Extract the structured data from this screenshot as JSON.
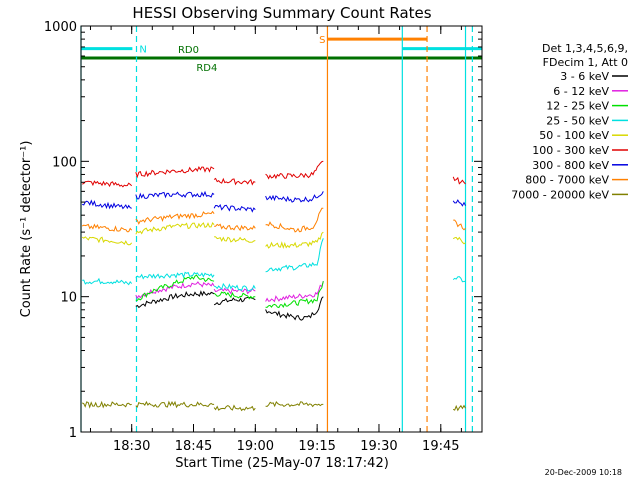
{
  "chart_data": {
    "type": "line",
    "title": "HESSI Observing Summary Count Rates",
    "xlabel": "Start Time (25-May-07 18:17:42)",
    "ylabel": "Count Rate (s⁻¹ detector⁻¹)",
    "xlim": [
      "18:17:42",
      "19:55:00"
    ],
    "ylim": [
      1,
      1000
    ],
    "yscale": "log",
    "x_ticks": [
      "18:30",
      "18:45",
      "19:00",
      "19:15",
      "19:30",
      "19:45"
    ],
    "y_ticks": [
      "1",
      "10",
      "100",
      "1000"
    ],
    "legend": {
      "position": "right",
      "header": [
        "Det 1,3,4,5,6,9,",
        "FDecim 1, Att 0"
      ],
      "entries": [
        {
          "label": "3 - 6 keV",
          "color": "#000000"
        },
        {
          "label": "6 - 12 keV",
          "color": "#e020e0"
        },
        {
          "label": "12 - 25 keV",
          "color": "#00e000"
        },
        {
          "label": "25 - 50 keV",
          "color": "#00e0e0"
        },
        {
          "label": "50 - 100 keV",
          "color": "#d8d800"
        },
        {
          "label": "100 - 300 keV",
          "color": "#e00000"
        },
        {
          "label": "300 - 800 keV",
          "color": "#0000e0"
        },
        {
          "label": "800 - 7000 keV",
          "color": "#ff8000"
        },
        {
          "label": "7000 - 20000 keV",
          "color": "#808000"
        }
      ]
    },
    "series": [
      {
        "name": "3 - 6 keV",
        "color": "#000000",
        "segments": [
          [
            [
              "18:31:00",
              8.5
            ],
            [
              "18:34:00",
              9
            ],
            [
              "18:40:00",
              10
            ],
            [
              "18:45:00",
              10.5
            ],
            [
              "18:50:00",
              10.5
            ]
          ],
          [
            [
              "18:50:00",
              9
            ],
            [
              "18:55:00",
              9.5
            ],
            [
              "19:00:00",
              9.5
            ]
          ],
          [
            [
              "19:02:30",
              8
            ],
            [
              "19:05:00",
              7.5
            ],
            [
              "19:10:00",
              7
            ],
            [
              "19:13:00",
              7
            ],
            [
              "19:15:00",
              8
            ],
            [
              "19:16:30",
              10
            ]
          ]
        ]
      },
      {
        "name": "6 - 12 keV",
        "color": "#e020e0",
        "segments": [
          [
            [
              "18:31:00",
              10
            ],
            [
              "18:35:00",
              11
            ],
            [
              "18:45:00",
              12.5
            ],
            [
              "18:50:00",
              12
            ]
          ],
          [
            [
              "18:50:00",
              11
            ],
            [
              "19:00:00",
              11
            ]
          ],
          [
            [
              "19:02:30",
              9.5
            ],
            [
              "19:10:00",
              10
            ],
            [
              "19:15:00",
              10.5
            ],
            [
              "19:16:30",
              13
            ]
          ]
        ]
      },
      {
        "name": "12 - 25 keV",
        "color": "#00e000",
        "segments": [
          [
            [
              "18:31:00",
              9.5
            ],
            [
              "18:35:00",
              11
            ],
            [
              "18:45:00",
              14
            ],
            [
              "18:50:00",
              13
            ]
          ],
          [
            [
              "18:50:00",
              10.5
            ],
            [
              "19:00:00",
              10
            ]
          ],
          [
            [
              "19:02:30",
              8.5
            ],
            [
              "19:10:00",
              9
            ],
            [
              "19:15:00",
              9.5
            ],
            [
              "19:16:30",
              13
            ]
          ]
        ]
      },
      {
        "name": "25 - 50 keV",
        "color": "#00e0e0",
        "segments": [
          [
            [
              "18:18:00",
              13
            ],
            [
              "18:25:00",
              13
            ],
            [
              "18:30:00",
              12.5
            ]
          ],
          [
            [
              "18:31:00",
              14
            ],
            [
              "18:40:00",
              14.5
            ],
            [
              "18:50:00",
              14.5
            ]
          ],
          [
            [
              "18:50:00",
              12
            ],
            [
              "19:00:00",
              11.5
            ]
          ],
          [
            [
              "19:02:30",
              16
            ],
            [
              "19:10:00",
              16.5
            ],
            [
              "19:15:00",
              17.5
            ],
            [
              "19:16:30",
              27
            ]
          ],
          [
            [
              "19:48:00",
              14
            ],
            [
              "19:51:00",
              13
            ]
          ]
        ]
      },
      {
        "name": "50 - 100 keV",
        "color": "#d8d800",
        "segments": [
          [
            [
              "18:18:00",
              27
            ],
            [
              "18:25:00",
              26
            ],
            [
              "18:30:00",
              25
            ]
          ],
          [
            [
              "18:31:00",
              30
            ],
            [
              "18:40:00",
              33
            ],
            [
              "18:50:00",
              34
            ]
          ],
          [
            [
              "18:50:00",
              27
            ],
            [
              "19:00:00",
              26
            ]
          ],
          [
            [
              "19:02:30",
              24
            ],
            [
              "19:10:00",
              24
            ],
            [
              "19:15:00",
              25
            ],
            [
              "19:16:30",
              30
            ]
          ],
          [
            [
              "19:48:00",
              28
            ],
            [
              "19:51:00",
              25
            ]
          ]
        ]
      },
      {
        "name": "100 - 300 keV",
        "color": "#e00000",
        "segments": [
          [
            [
              "18:18:00",
              70
            ],
            [
              "18:25:00",
              68
            ],
            [
              "18:30:00",
              66
            ]
          ],
          [
            [
              "18:31:00",
              80
            ],
            [
              "18:40:00",
              85
            ],
            [
              "18:50:00",
              88
            ]
          ],
          [
            [
              "18:50:00",
              72
            ],
            [
              "19:00:00",
              70
            ]
          ],
          [
            [
              "19:02:30",
              78
            ],
            [
              "19:10:00",
              78
            ],
            [
              "19:14:00",
              80
            ],
            [
              "19:16:30",
              100
            ]
          ],
          [
            [
              "19:48:00",
              75
            ],
            [
              "19:51:00",
              68
            ]
          ]
        ]
      },
      {
        "name": "300 - 800 keV",
        "color": "#0000e0",
        "segments": [
          [
            [
              "18:18:00",
              50
            ],
            [
              "18:25:00",
              47
            ],
            [
              "18:30:00",
              45
            ]
          ],
          [
            [
              "18:31:00",
              55
            ],
            [
              "18:40:00",
              57
            ],
            [
              "18:50:00",
              57
            ]
          ],
          [
            [
              "18:50:00",
              46
            ],
            [
              "19:00:00",
              44
            ]
          ],
          [
            [
              "19:02:30",
              54
            ],
            [
              "19:10:00",
              52
            ],
            [
              "19:14:00",
              53
            ],
            [
              "19:16:30",
              60
            ]
          ],
          [
            [
              "19:48:00",
              52
            ],
            [
              "19:51:00",
              47
            ]
          ]
        ]
      },
      {
        "name": "800 - 7000 keV",
        "color": "#ff8000",
        "segments": [
          [
            [
              "18:18:00",
              33
            ],
            [
              "18:25:00",
              32
            ],
            [
              "18:30:00",
              31
            ]
          ],
          [
            [
              "18:31:00",
              36
            ],
            [
              "18:40:00",
              39
            ],
            [
              "18:50:00",
              41
            ]
          ],
          [
            [
              "18:50:00",
              33
            ],
            [
              "19:00:00",
              32
            ]
          ],
          [
            [
              "19:02:30",
              35
            ],
            [
              "19:10:00",
              31
            ],
            [
              "19:14:00",
              33
            ],
            [
              "19:16:30",
              45
            ]
          ],
          [
            [
              "19:48:00",
              36
            ],
            [
              "19:51:00",
              32
            ]
          ]
        ]
      },
      {
        "name": "7000 - 20000 keV",
        "color": "#808000",
        "segments": [
          [
            [
              "18:18:00",
              1.6
            ],
            [
              "18:30:00",
              1.6
            ]
          ],
          [
            [
              "18:31:00",
              1.6
            ],
            [
              "18:50:00",
              1.6
            ]
          ],
          [
            [
              "18:50:00",
              1.5
            ],
            [
              "19:00:00",
              1.5
            ]
          ],
          [
            [
              "19:02:30",
              1.6
            ],
            [
              "19:16:30",
              1.6
            ]
          ],
          [
            [
              "19:48:00",
              1.5
            ],
            [
              "19:51:00",
              1.5
            ]
          ]
        ]
      }
    ],
    "annotations": [
      {
        "label": "N",
        "color": "#00e0e0",
        "start": "18:17:42",
        "end": "18:30:10",
        "value": 680
      },
      {
        "label": "RD0",
        "color": "#007000",
        "start": "18:49:00",
        "end": "19:55:00",
        "value": 580
      },
      {
        "label": "RD4",
        "color": "#007000",
        "start": "18:17:42",
        "end": "18:52:00",
        "value": 580
      },
      {
        "label": "S",
        "color": "#ff8000",
        "start": "19:17:30",
        "end": "19:41:40",
        "value": 800
      },
      {
        "label": "",
        "color": "#00e0e0",
        "start": "19:35:40",
        "end": "19:55:00",
        "value": 680
      }
    ],
    "vlines": [
      {
        "time": "18:17:42",
        "color": "#00e0e0",
        "style": "solid"
      },
      {
        "time": "18:31:10",
        "color": "#00e0e0",
        "style": "dashed"
      },
      {
        "time": "19:17:30",
        "color": "#ff8000",
        "style": "solid"
      },
      {
        "time": "19:35:40",
        "color": "#00e0e0",
        "style": "solid"
      },
      {
        "time": "19:41:40",
        "color": "#ff8000",
        "style": "dashed"
      },
      {
        "time": "19:51:00",
        "color": "#00e0e0",
        "style": "solid"
      },
      {
        "time": "19:52:40",
        "color": "#00e0e0",
        "style": "dashed"
      }
    ],
    "grid": false
  },
  "footer_date": "20-Dec-2009 10:18"
}
